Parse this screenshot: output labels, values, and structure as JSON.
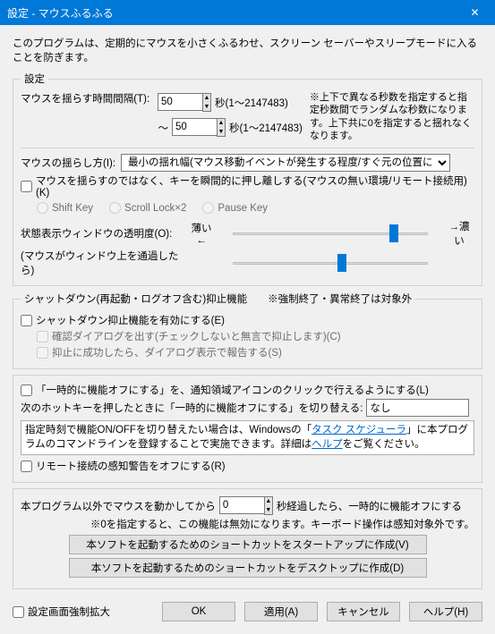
{
  "window": {
    "title": "設定 - マウスふるふる"
  },
  "description": "このプログラムは、定期的にマウスを小さくふるわせ、スクリーン セーバーやスリープモードに入ることを防ぎます。",
  "settings": {
    "legend": "設定",
    "interval": {
      "label": "マウスを揺らす時間間隔(T):",
      "from": "50",
      "to": "50",
      "tilde": "～",
      "unit1": "秒(1～2147483)",
      "unit2": "秒(1～2147483)",
      "note": "※上下で異なる秒数を指定すると指定秒数間でランダムな秒数になります。上下共に0を指定すると揺れなくなります。"
    },
    "method": {
      "label": "マウスの揺らし方(I):",
      "value": "最小の揺れ幅(マウス移動イベントが発生する程度/すぐ元の位置に戻す)"
    },
    "pressKey": {
      "label": "マウスを揺らすのではなく、キーを瞬間的に押し離しする(マウスの無い環境/リモート接続用)(K)",
      "r1": "Shift Key",
      "r2": "Scroll Lock×2",
      "r3": "Pause Key"
    },
    "transparency": {
      "label1": "状態表示ウィンドウの透明度(O):",
      "label2": "(マウスがウィンドウ上を通過したら)",
      "left": "薄い←",
      "right": "→濃い",
      "pos1": 78,
      "pos2": 55
    }
  },
  "shutdown": {
    "legend": "シャットダウン(再起動・ログオフ含む)抑止機能　　※強制終了・異常終了は対象外",
    "enable": "シャットダウン抑止機能を有効にする(E)",
    "confirm": "確認ダイアログを出す(チェックしないと無言で抑止します)(C)",
    "report": "抑止に成功したら、ダイアログ表示で報告する(S)"
  },
  "tempOff": {
    "label": "「一時的に機能オフにする」を、通知領域アイコンのクリックで行えるようにする(L)",
    "hotkey_label": "次のホットキーを押したときに「一時的に機能オフにする」を切り替える:",
    "hotkey_value": "なし",
    "info_a": "指定時刻で機能ON/OFFを切り替えたい場合は、Windowsの「",
    "link1": "タスク スケジューラ",
    "info_b": "」に本プログラムのコマンドラインを登録することで実施できます。詳細は",
    "link2": "ヘルプ",
    "info_c": "をご覧ください。",
    "remote": "リモート接続の感知警告をオフにする(R)"
  },
  "extMouse": {
    "label": "本プログラム以外でマウスを動かしてから",
    "value": "0",
    "unit": "秒経過したら、一時的に機能オフにする",
    "note": "※0を指定すると、この機能は無効になります。キーボード操作は感知対象外です。"
  },
  "buttons": {
    "startup": "本ソフトを起動するためのショートカットをスタートアップに作成(V)",
    "desktop": "本ソフトを起動するためのショートカットをデスクトップに作成(D)",
    "forceExpand": "設定画面強制拡大",
    "ok": "OK",
    "apply": "適用(A)",
    "cancel": "キャンセル",
    "help": "ヘルプ(H)"
  }
}
